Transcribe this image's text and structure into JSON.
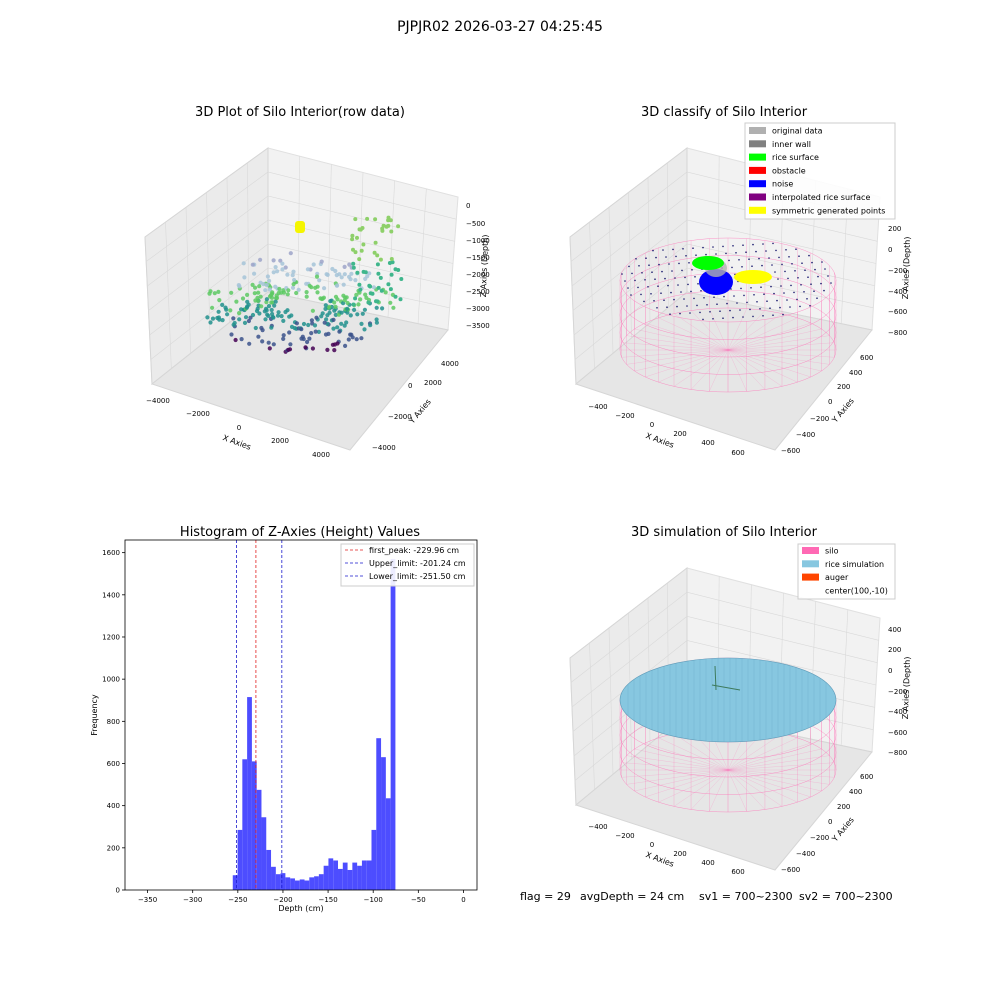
{
  "suptitle": "PJPJR02 2026-03-27 04:25:45",
  "footer": {
    "flag": "flag = 29",
    "avg_depth": "avgDepth = 24 cm",
    "sv1": "sv1 = 700~2300",
    "sv2": "sv2 = 700~2300"
  },
  "colors": {
    "histogram_bar": "#4d4dff",
    "peak_line": "#e02020",
    "limit_line": "#1a1acc",
    "silo_pink": "#ff69b4",
    "rice_sim": "#87c7e0",
    "auger": "#ff4500",
    "rice_surface": "#00ff00",
    "noise": "#0000ff",
    "symmetric": "#ffff00",
    "original": "#b0b0b0",
    "inner_wall": "#808080",
    "obstacle": "#ff0000",
    "interp": "#800080"
  },
  "chart_data": [
    {
      "type": "scatter",
      "subtype": "3d",
      "title": "3D Plot of Silo Interior(row data)",
      "xlabel": "X Axies",
      "ylabel": "Y Axies",
      "zlabel": "Z Axies (Depth)",
      "x_ticks": [
        "−4000",
        "−2000",
        "0",
        "2000",
        "4000"
      ],
      "y_ticks": [
        "−4000",
        "−2000",
        "0",
        "2000",
        "4000"
      ],
      "z_ticks": [
        "0",
        "−500",
        "−1000",
        "−1500",
        "−2000",
        "−2500",
        "−3000",
        "−3500"
      ],
      "xlim": [
        -4500,
        4500
      ],
      "ylim": [
        -4500,
        4500
      ],
      "zlim": [
        -3700,
        200
      ]
    },
    {
      "type": "scatter",
      "subtype": "3d",
      "title": "3D classify of Silo Interior",
      "xlabel": "X Axies",
      "ylabel": "Y Axies",
      "zlabel": "Z Axies (Depth)",
      "x_ticks": [
        "−400",
        "−200",
        "0",
        "200",
        "400",
        "600"
      ],
      "y_ticks": [
        "−600",
        "−400",
        "−200",
        "0",
        "200",
        "400",
        "600"
      ],
      "z_ticks": [
        "200",
        "0",
        "−200",
        "−400",
        "−600",
        "−800"
      ],
      "legend": [
        "original data",
        "inner wall",
        "rice surface",
        "obstacle",
        "noise",
        "interpolated rice surface",
        "symmetric generated points"
      ],
      "legend_placement": "top-right"
    },
    {
      "type": "bar",
      "subtype": "histogram",
      "title": "Histogram of Z-Axies (Height) Values",
      "xlabel": "Depth (cm)",
      "ylabel": "Frequency",
      "xlim": [
        -375,
        15
      ],
      "ylim": [
        0,
        1660
      ],
      "x_ticks": [
        -350,
        -300,
        -250,
        -200,
        -150,
        -100,
        -50,
        0
      ],
      "y_ticks": [
        0,
        200,
        400,
        600,
        800,
        1000,
        1200,
        1400,
        1600
      ],
      "bin_start": -255.6,
      "bin_width": 5.3,
      "values": [
        70,
        285,
        620,
        915,
        610,
        475,
        345,
        190,
        110,
        75,
        80,
        60,
        55,
        45,
        50,
        45,
        60,
        65,
        75,
        115,
        150,
        140,
        100,
        130,
        95,
        130,
        115,
        140,
        140,
        285,
        720,
        630,
        435,
        1570
      ],
      "vlines": [
        {
          "label": "first_peak: -229.96 cm",
          "x": -229.96,
          "role": "peak"
        },
        {
          "label": "Upper_limit: -201.24 cm",
          "x": -201.24,
          "role": "limit"
        },
        {
          "label": "Lower_limit: -251.50 cm",
          "x": -251.5,
          "role": "limit"
        }
      ],
      "grid": false,
      "legend_placement": "top-right"
    },
    {
      "type": "scatter",
      "subtype": "3d-simulation",
      "title": "3D simulation of Silo Interior",
      "xlabel": "X Axies",
      "ylabel": "Y Axies",
      "zlabel": "Z Axies (Depth)",
      "x_ticks": [
        "−400",
        "−200",
        "0",
        "200",
        "400",
        "600"
      ],
      "y_ticks": [
        "−600",
        "−400",
        "−200",
        "0",
        "200",
        "400",
        "600"
      ],
      "z_ticks": [
        "400",
        "200",
        "0",
        "−200",
        "−400",
        "−600",
        "−800"
      ],
      "legend": [
        "silo",
        "rice simulation",
        "auger",
        "center(100,-10)"
      ],
      "legend_placement": "top-right"
    }
  ]
}
